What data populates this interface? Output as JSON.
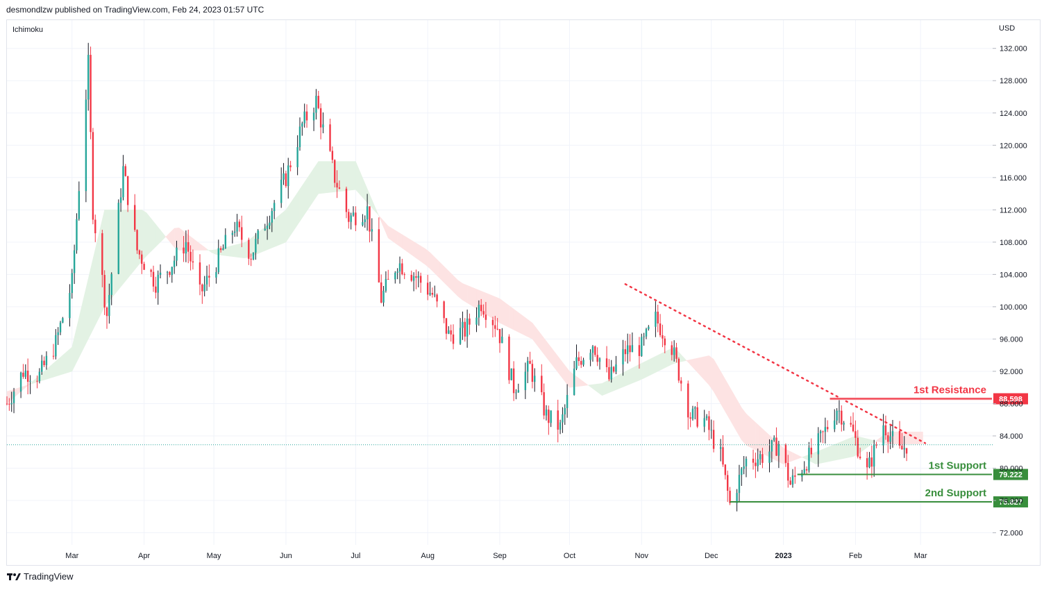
{
  "header": {
    "publisher_line": "desmondlzw published on TradingView.com, Feb 24, 2023 01:57 UTC"
  },
  "footer": {
    "brand": "TradingView"
  },
  "colors": {
    "bull": "#26a69a",
    "bear": "#f23645",
    "candle_dark": "#131722",
    "resistance": "#f23645",
    "support": "#388e3c",
    "cloud_bull": "#e3f2e4",
    "cloud_bear": "#fde3e3"
  },
  "chart_data": {
    "type": "candlestick",
    "indicator": "Ichimoku",
    "currency": "USD",
    "ylim": [
      70.5,
      135.5
    ],
    "y_ticks": [
      "132.000",
      "128.000",
      "124.000",
      "120.000",
      "116.000",
      "112.000",
      "108.000",
      "104.000",
      "100.000",
      "96.000",
      "92.000",
      "88.000",
      "84.000",
      "80.000",
      "76.000",
      "72.000"
    ],
    "y_tick_values": [
      132,
      128,
      124,
      120,
      116,
      112,
      108,
      104,
      100,
      96,
      92,
      88,
      84,
      80,
      76,
      72
    ],
    "x_ticks": [
      "Mar",
      "Apr",
      "May",
      "Jun",
      "Jul",
      "Aug",
      "Sep",
      "Oct",
      "Nov",
      "Dec",
      "2023",
      "Feb",
      "Mar"
    ],
    "x_tick_dates": [
      "2022-03-01",
      "2022-04-01",
      "2022-05-01",
      "2022-06-01",
      "2022-07-01",
      "2022-08-01",
      "2022-09-01",
      "2022-10-01",
      "2022-11-01",
      "2022-12-01",
      "2023-01-01",
      "2023-02-01",
      "2023-03-01"
    ],
    "x_range": [
      "2022-02-01",
      "2023-04-01"
    ],
    "price_path": [
      {
        "date": "2022-02-01",
        "close": 88.0
      },
      {
        "date": "2022-02-08",
        "close": 92.0
      },
      {
        "date": "2022-02-15",
        "close": 91.5
      },
      {
        "date": "2022-02-22",
        "close": 95.5
      },
      {
        "date": "2022-03-01",
        "close": 103.0
      },
      {
        "date": "2022-03-04",
        "close": 115.0
      },
      {
        "date": "2022-03-08",
        "close": 130.0
      },
      {
        "date": "2022-03-10",
        "close": 112.0
      },
      {
        "date": "2022-03-16",
        "close": 99.0
      },
      {
        "date": "2022-03-23",
        "close": 117.0
      },
      {
        "date": "2022-03-29",
        "close": 107.0
      },
      {
        "date": "2022-04-06",
        "close": 103.0
      },
      {
        "date": "2022-04-12",
        "close": 105.0
      },
      {
        "date": "2022-04-19",
        "close": 108.0
      },
      {
        "date": "2022-04-25",
        "close": 101.5
      },
      {
        "date": "2022-05-03",
        "close": 106.0
      },
      {
        "date": "2022-05-10",
        "close": 110.0
      },
      {
        "date": "2022-05-17",
        "close": 106.5
      },
      {
        "date": "2022-05-24",
        "close": 111.0
      },
      {
        "date": "2022-06-01",
        "close": 116.0
      },
      {
        "date": "2022-06-08",
        "close": 122.5
      },
      {
        "date": "2022-06-14",
        "close": 125.5
      },
      {
        "date": "2022-06-22",
        "close": 116.0
      },
      {
        "date": "2022-06-28",
        "close": 111.0
      },
      {
        "date": "2022-07-06",
        "close": 112.0
      },
      {
        "date": "2022-07-12",
        "close": 101.0
      },
      {
        "date": "2022-07-19",
        "close": 105.5
      },
      {
        "date": "2022-07-26",
        "close": 104.0
      },
      {
        "date": "2022-08-03",
        "close": 101.5
      },
      {
        "date": "2022-08-10",
        "close": 96.5
      },
      {
        "date": "2022-08-17",
        "close": 97.0
      },
      {
        "date": "2022-08-24",
        "close": 100.5
      },
      {
        "date": "2022-08-31",
        "close": 97.5
      },
      {
        "date": "2022-09-07",
        "close": 90.0
      },
      {
        "date": "2022-09-14",
        "close": 92.5
      },
      {
        "date": "2022-09-21",
        "close": 86.5
      },
      {
        "date": "2022-09-27",
        "close": 85.0
      },
      {
        "date": "2022-10-04",
        "close": 93.0
      },
      {
        "date": "2022-10-11",
        "close": 95.5
      },
      {
        "date": "2022-10-18",
        "close": 91.0
      },
      {
        "date": "2022-10-25",
        "close": 94.5
      },
      {
        "date": "2022-11-01",
        "close": 95.0
      },
      {
        "date": "2022-11-07",
        "close": 98.5
      },
      {
        "date": "2022-11-14",
        "close": 95.0
      },
      {
        "date": "2022-11-22",
        "close": 86.5
      },
      {
        "date": "2022-11-28",
        "close": 86.0
      },
      {
        "date": "2022-12-05",
        "close": 81.5
      },
      {
        "date": "2022-12-09",
        "close": 75.5
      },
      {
        "date": "2022-12-16",
        "close": 81.0
      },
      {
        "date": "2022-12-23",
        "close": 81.5
      },
      {
        "date": "2022-12-30",
        "close": 83.0
      },
      {
        "date": "2023-01-04",
        "close": 78.0
      },
      {
        "date": "2023-01-10",
        "close": 80.5
      },
      {
        "date": "2023-01-17",
        "close": 83.5
      },
      {
        "date": "2023-01-24",
        "close": 87.5
      },
      {
        "date": "2023-01-30",
        "close": 85.0
      },
      {
        "date": "2023-02-06",
        "close": 79.5
      },
      {
        "date": "2023-02-13",
        "close": 85.5
      },
      {
        "date": "2023-02-20",
        "close": 82.0
      },
      {
        "date": "2023-02-23",
        "close": 82.9
      }
    ],
    "cloud_path": [
      {
        "date": "2022-02-01",
        "a": 88.0,
        "b": 89.5
      },
      {
        "date": "2022-03-01",
        "a": 95.0,
        "b": 92.0
      },
      {
        "date": "2022-03-15",
        "a": 112.0,
        "b": 100.0
      },
      {
        "date": "2022-04-01",
        "a": 112.0,
        "b": 106.0
      },
      {
        "date": "2022-04-15",
        "a": 107.0,
        "b": 110.0
      },
      {
        "date": "2022-05-01",
        "a": 107.0,
        "b": 106.5
      },
      {
        "date": "2022-05-15",
        "a": 108.0,
        "b": 106.0
      },
      {
        "date": "2022-06-01",
        "a": 112.0,
        "b": 108.0
      },
      {
        "date": "2022-06-15",
        "a": 118.0,
        "b": 114.0
      },
      {
        "date": "2022-07-01",
        "a": 118.0,
        "b": 114.5
      },
      {
        "date": "2022-07-15",
        "a": 108.5,
        "b": 110.0
      },
      {
        "date": "2022-08-01",
        "a": 105.0,
        "b": 107.0
      },
      {
        "date": "2022-08-15",
        "a": 101.0,
        "b": 103.0
      },
      {
        "date": "2022-09-01",
        "a": 98.0,
        "b": 101.0
      },
      {
        "date": "2022-09-15",
        "a": 96.0,
        "b": 98.0
      },
      {
        "date": "2022-10-01",
        "a": 90.0,
        "b": 92.0
      },
      {
        "date": "2022-10-15",
        "a": 90.5,
        "b": 89.0
      },
      {
        "date": "2022-11-01",
        "a": 93.0,
        "b": 91.0
      },
      {
        "date": "2022-11-15",
        "a": 95.0,
        "b": 93.0
      },
      {
        "date": "2022-12-01",
        "a": 90.0,
        "b": 94.0
      },
      {
        "date": "2022-12-15",
        "a": 83.0,
        "b": 87.0
      },
      {
        "date": "2023-01-01",
        "a": 80.5,
        "b": 82.5
      },
      {
        "date": "2023-01-15",
        "a": 82.0,
        "b": 80.5
      },
      {
        "date": "2023-02-01",
        "a": 84.0,
        "b": 81.5
      },
      {
        "date": "2023-02-15",
        "a": 83.0,
        "b": 84.5
      },
      {
        "date": "2023-03-01",
        "a": 83.0,
        "b": 84.5
      }
    ],
    "current_price": 82.9,
    "levels": [
      {
        "name": "1st Resistance",
        "value": 88.598,
        "value_label": "88.598",
        "kind": "resistance",
        "start_date": "2023-01-21"
      },
      {
        "name": "1st Support",
        "value": 79.222,
        "value_label": "79.222",
        "kind": "support",
        "start_date": "2023-01-07"
      },
      {
        "name": "2nd Support",
        "value": 75.827,
        "value_label": "75.827",
        "kind": "support",
        "start_date": "2022-12-09"
      }
    ],
    "trendline": {
      "style": "dotted",
      "color": "#f23645",
      "start": {
        "date": "2022-10-25",
        "value": 102.8
      },
      "end": {
        "date": "2023-03-03",
        "value": 83.1
      }
    }
  }
}
